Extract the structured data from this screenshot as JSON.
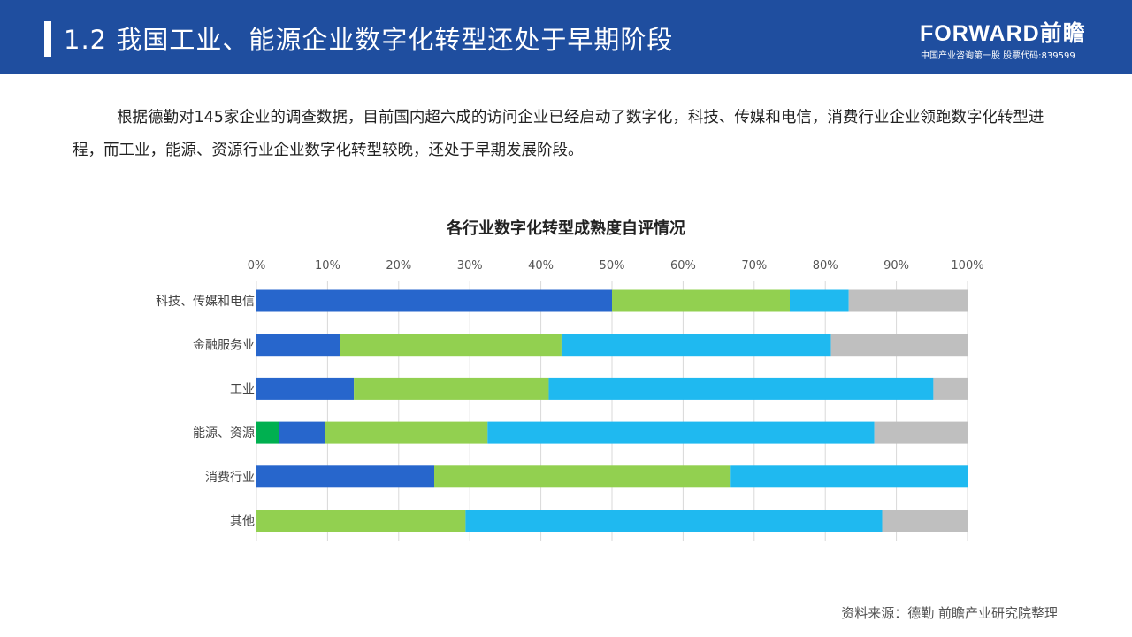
{
  "header": {
    "title": "1.2 我国工业、能源企业数字化转型还处于早期阶段",
    "logo": "FORWARD前瞻",
    "logo_sub": "中国产业咨询第一股  股票代码:839599"
  },
  "paragraph": "根据德勤对145家企业的调查数据，目前国内超六成的访问企业已经启动了数字化，科技、传媒和电信，消费行业企业领跑数字化转型进程，而工业，能源、资源行业企业数字化转型较晚，还处于早期发展阶段。",
  "source": "资料来源：德勤 前瞻产业研究院整理",
  "chart_data": {
    "type": "bar",
    "orientation": "horizontal",
    "stacked": true,
    "title": "各行业数字化转型成熟度自评情况",
    "categories": [
      "科技、传媒和电信",
      "金融服务业",
      "工业",
      "能源、资源",
      "消费行业",
      "其他"
    ],
    "xlim": [
      0,
      100
    ],
    "x_ticks": [
      "0%",
      "10%",
      "20%",
      "30%",
      "40%",
      "50%",
      "60%",
      "70%",
      "80%",
      "90%",
      "100%"
    ],
    "grid": true,
    "legend": "none",
    "series": [
      {
        "color": "#00b050",
        "values": [
          0,
          0,
          0,
          3.2,
          0,
          0
        ]
      },
      {
        "color": "#2766cc",
        "values": [
          50,
          11.8,
          13.7,
          6.5,
          25,
          0
        ]
      },
      {
        "color": "#92d050",
        "values": [
          25,
          31.1,
          27.4,
          22.8,
          41.7,
          29.4
        ]
      },
      {
        "color": "#1fb9f0",
        "values": [
          8.3,
          37.9,
          54.1,
          54.4,
          33.3,
          58.6
        ]
      },
      {
        "color": "#bfbfbf",
        "values": [
          16.7,
          19.2,
          4.8,
          13.1,
          0,
          12
        ]
      }
    ]
  }
}
